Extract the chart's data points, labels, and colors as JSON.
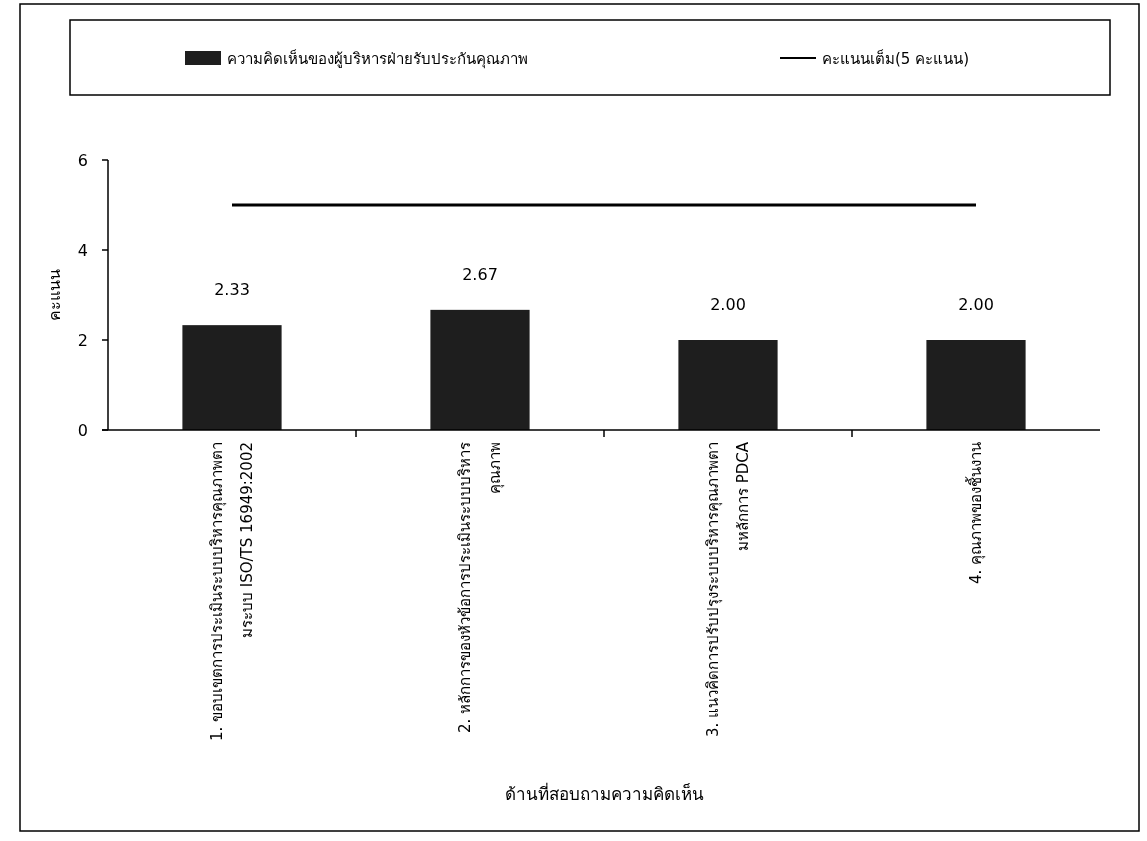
{
  "chart_data": {
    "type": "bar",
    "xlabel": "ด้านที่สอบถามความคิดเห็น",
    "ylabel": "คะแนน",
    "categories": [
      "1. ขอบเขตการประเมินระบบบริหารคุณภาพตามระบบ ISO/TS 16949:2002",
      "2. หลักการของหัวข้อการประเมินระบบบริหารคุณภาพ",
      "3. แนวคิดการปรับปรุงระบบบริหารคุณภาพตามหลักการ PDCA",
      "4. คุณภาพของชิ้นงาน"
    ],
    "series": [
      {
        "name": "ความคิดเห็นของผู้บริหารฝ่ายรับประกันคุณภาพ",
        "type": "bar",
        "color": "#1e1e1e",
        "values": [
          2.33,
          2.67,
          2.0,
          2.0
        ],
        "value_labels": [
          "2.33",
          "2.67",
          "2.00",
          "2.00"
        ]
      },
      {
        "name": "คะแนนเต็ม(5 คะแนน)",
        "type": "line",
        "color": "#000000",
        "values": [
          5,
          5,
          5,
          5
        ]
      }
    ],
    "ylim": [
      0,
      6
    ],
    "yticks": [
      0,
      2,
      4,
      6
    ],
    "grid": false,
    "legend": "top",
    "marker": "none"
  }
}
